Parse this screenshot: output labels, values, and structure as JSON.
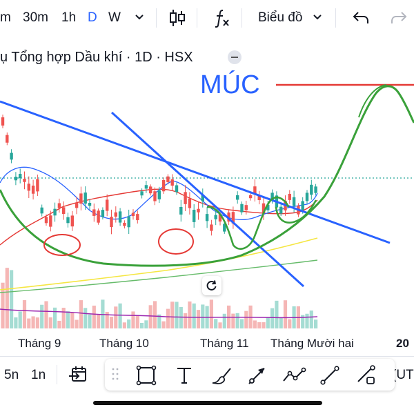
{
  "toolbar": {
    "intervals": [
      "m",
      "30m",
      "1h",
      "D",
      "W"
    ],
    "active_interval": "D",
    "interval_more_icon": "chevron-down-icon",
    "candle_icon": "candlestick-icon",
    "indicator_icon": "fx-icon",
    "chart_menu_label": "Biểu đồ",
    "undo_icon": "undo-icon",
    "redo_icon": "redo-icon"
  },
  "chart": {
    "title": "ụ Tổng hợp Dầu khí · 1D · HSX",
    "annotation": "MÚC",
    "x_labels": [
      "Tháng 9",
      "Tháng 10",
      "Tháng 11",
      "Tháng Mười hai",
      "20"
    ],
    "reset_icon": "reset-icon",
    "colors": {
      "up": "#26a69a",
      "down": "#ef5350",
      "trendline": "#2962ff",
      "drawing": "#3aa13a",
      "target": "#e53935"
    }
  },
  "bottom": {
    "ranges": [
      "5n",
      "1n"
    ],
    "date_range_icon": "calendar-arrow-icon",
    "tools": [
      "rectangle-icon",
      "text-icon",
      "brush-icon",
      "ray-icon",
      "path-icon",
      "trendline-icon",
      "measure-icon"
    ],
    "timezone": "(UT"
  }
}
